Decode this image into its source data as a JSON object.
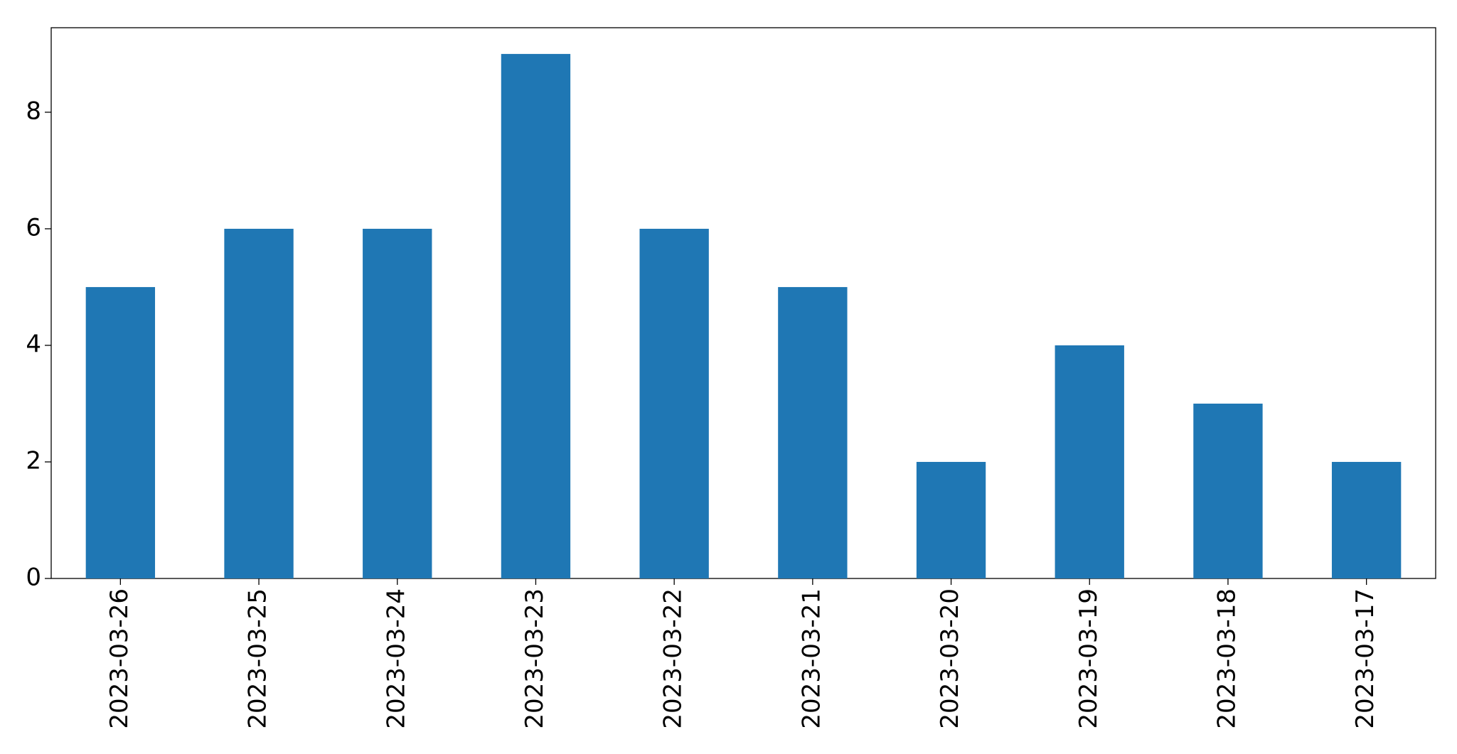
{
  "chart_data": {
    "type": "bar",
    "categories": [
      "2023-03-26",
      "2023-03-25",
      "2023-03-24",
      "2023-03-23",
      "2023-03-22",
      "2023-03-21",
      "2023-03-20",
      "2023-03-19",
      "2023-03-18",
      "2023-03-17"
    ],
    "values": [
      5,
      6,
      6,
      9,
      6,
      5,
      2,
      4,
      3,
      2
    ],
    "color": "#1f77b4",
    "ylim": [
      0,
      9.45
    ],
    "yticks": [
      0,
      2,
      4,
      6,
      8
    ],
    "grid": false
  }
}
